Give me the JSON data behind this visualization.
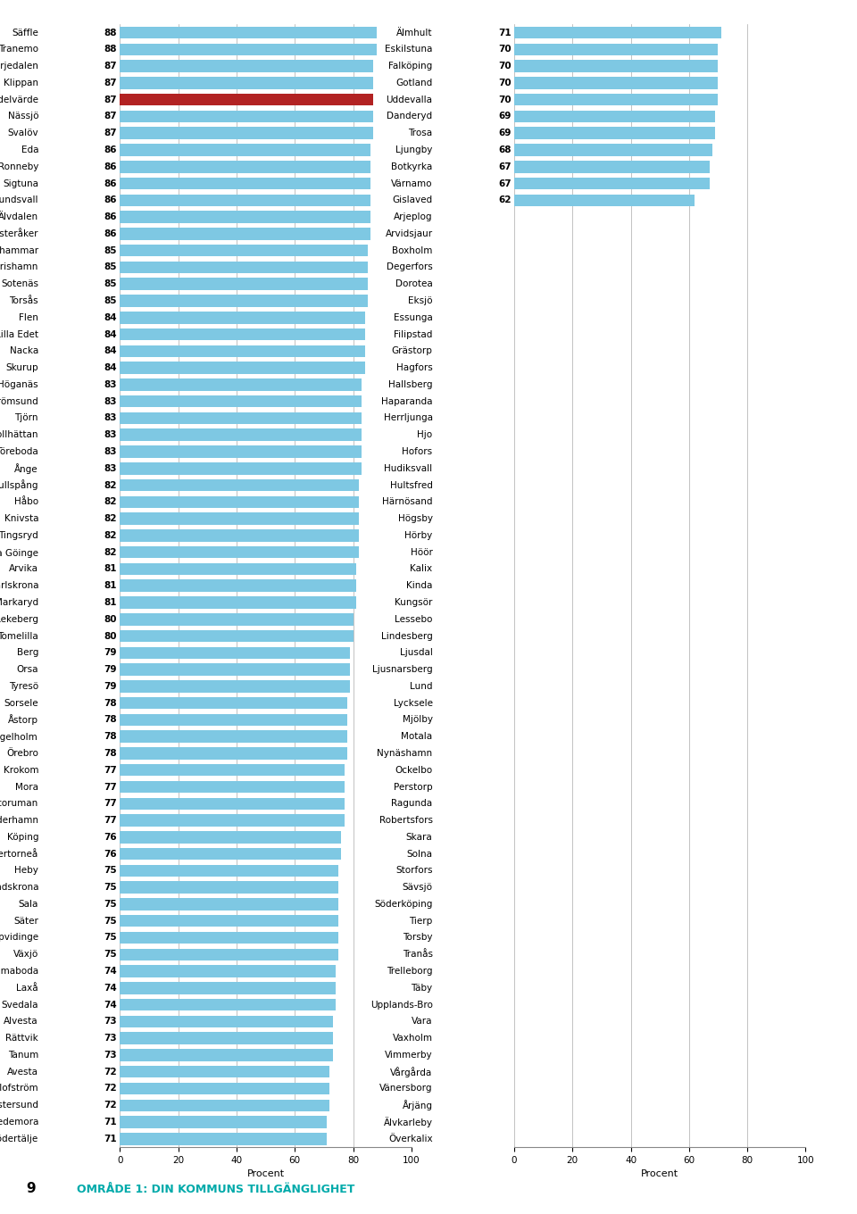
{
  "left_bars": [
    [
      "Säffle",
      88
    ],
    [
      "Tranemo",
      88
    ],
    [
      "Härjedalen",
      87
    ],
    [
      "Klippan",
      87
    ],
    [
      "Medelvärde",
      87
    ],
    [
      "Nässjö",
      87
    ],
    [
      "Svalöv",
      87
    ],
    [
      "Eda",
      86
    ],
    [
      "Ronneby",
      86
    ],
    [
      "Sigtuna",
      86
    ],
    [
      "Sundsvall",
      86
    ],
    [
      "Älvdalen",
      86
    ],
    [
      "Österåker",
      86
    ],
    [
      "Hallstahammar",
      85
    ],
    [
      "Simrishamn",
      85
    ],
    [
      "Sotenäs",
      85
    ],
    [
      "Torsås",
      85
    ],
    [
      "Flen",
      84
    ],
    [
      "Lilla Edet",
      84
    ],
    [
      "Nacka",
      84
    ],
    [
      "Skurup",
      84
    ],
    [
      "Höganäs",
      83
    ],
    [
      "Strömsund",
      83
    ],
    [
      "Tjörn",
      83
    ],
    [
      "Trollhättan",
      83
    ],
    [
      "Töreboda",
      83
    ],
    [
      "Ånge",
      83
    ],
    [
      "Gullspång",
      82
    ],
    [
      "Håbo",
      82
    ],
    [
      "Knivsta",
      82
    ],
    [
      "Tingsryd",
      82
    ],
    [
      "Östra Göinge",
      82
    ],
    [
      "Arvika",
      81
    ],
    [
      "Karlskrona",
      81
    ],
    [
      "Markaryd",
      81
    ],
    [
      "Lekeberg",
      80
    ],
    [
      "Tomelilla",
      80
    ],
    [
      "Berg",
      79
    ],
    [
      "Orsa",
      79
    ],
    [
      "Tyresö",
      79
    ],
    [
      "Sorsele",
      78
    ],
    [
      "Åstorp",
      78
    ],
    [
      "Ängelholm",
      78
    ],
    [
      "Örebro",
      78
    ],
    [
      "Krokom",
      77
    ],
    [
      "Mora",
      77
    ],
    [
      "Storuman",
      77
    ],
    [
      "Söderhamn",
      77
    ],
    [
      "Köping",
      76
    ],
    [
      "Övertorneå",
      76
    ],
    [
      "Heby",
      75
    ],
    [
      "Landskrona",
      75
    ],
    [
      "Sala",
      75
    ],
    [
      "Säter",
      75
    ],
    [
      "Uppvidinge",
      75
    ],
    [
      "Växjö",
      75
    ],
    [
      "Emmaboda",
      74
    ],
    [
      "Laxå",
      74
    ],
    [
      "Svedala",
      74
    ],
    [
      "Alvesta",
      73
    ],
    [
      "Rättvik",
      73
    ],
    [
      "Tanum",
      73
    ],
    [
      "Avesta",
      72
    ],
    [
      "Olofström",
      72
    ],
    [
      "Östersund",
      72
    ],
    [
      "Hedemora",
      71
    ],
    [
      "Södertälje",
      71
    ]
  ],
  "right_bars": [
    [
      "Älmhult",
      71
    ],
    [
      "Eskilstuna",
      70
    ],
    [
      "Falköping",
      70
    ],
    [
      "Gotland",
      70
    ],
    [
      "Uddevalla",
      70
    ],
    [
      "Danderyd",
      69
    ],
    [
      "Trosa",
      69
    ],
    [
      "Ljungby",
      68
    ],
    [
      "Botkyrka",
      67
    ],
    [
      "Värnamo",
      67
    ],
    [
      "Gislaved",
      62
    ],
    [
      "Arjeplog",
      null
    ],
    [
      "Arvidsjaur",
      null
    ],
    [
      "Boxholm",
      null
    ],
    [
      "Degerfors",
      null
    ],
    [
      "Dorotea",
      null
    ],
    [
      "Eksjö",
      null
    ],
    [
      "Essunga",
      null
    ],
    [
      "Filipstad",
      null
    ],
    [
      "Grästorp",
      null
    ],
    [
      "Hagfors",
      null
    ],
    [
      "Hallsberg",
      null
    ],
    [
      "Haparanda",
      null
    ],
    [
      "Herrljunga",
      null
    ],
    [
      "Hjo",
      null
    ],
    [
      "Hofors",
      null
    ],
    [
      "Hudiksvall",
      null
    ],
    [
      "Hultsfred",
      null
    ],
    [
      "Härnösand",
      null
    ],
    [
      "Högsby",
      null
    ],
    [
      "Hörby",
      null
    ],
    [
      "Höör",
      null
    ],
    [
      "Kalix",
      null
    ],
    [
      "Kinda",
      null
    ],
    [
      "Kungsör",
      null
    ],
    [
      "Lessebo",
      null
    ],
    [
      "Lindesberg",
      null
    ],
    [
      "Ljusdal",
      null
    ],
    [
      "Ljusnarsberg",
      null
    ],
    [
      "Lund",
      null
    ],
    [
      "Lycksele",
      null
    ],
    [
      "Mjölby",
      null
    ],
    [
      "Motala",
      null
    ],
    [
      "Nynäshamn",
      null
    ],
    [
      "Ockelbo",
      null
    ],
    [
      "Perstorp",
      null
    ],
    [
      "Ragunda",
      null
    ],
    [
      "Robertsfors",
      null
    ],
    [
      "Skara",
      null
    ],
    [
      "Solna",
      null
    ],
    [
      "Storfors",
      null
    ],
    [
      "Sävsjö",
      null
    ],
    [
      "Söderköping",
      null
    ],
    [
      "Tierp",
      null
    ],
    [
      "Torsby",
      null
    ],
    [
      "Tranås",
      null
    ],
    [
      "Trelleborg",
      null
    ],
    [
      "Täby",
      null
    ],
    [
      "Upplands-Bro",
      null
    ],
    [
      "Vara",
      null
    ],
    [
      "Vaxholm",
      null
    ],
    [
      "Vimmerby",
      null
    ],
    [
      "Vårgårda",
      null
    ],
    [
      "Vänersborg",
      null
    ],
    [
      "Årjäng",
      null
    ],
    [
      "Älvkarleby",
      null
    ],
    [
      "Överkalix",
      null
    ]
  ],
  "bar_color": "#7ec8e3",
  "medelvarde_color": "#b22222",
  "footer_number": "9",
  "footer_text": "OMRÅDE 1: DIN KOMMUNS TILLGÄNGLIGHET",
  "footer_color": "#00aaaa",
  "xlabel": "Procent",
  "xlim": [
    0,
    100
  ],
  "bg_color": "#f5f5f5"
}
